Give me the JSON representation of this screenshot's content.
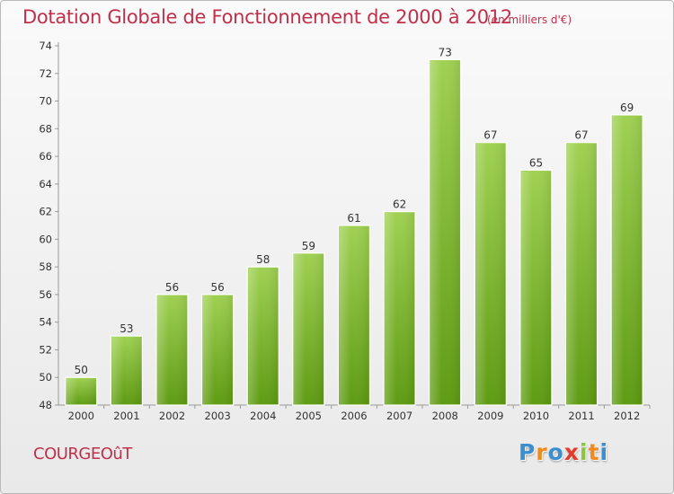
{
  "header": {
    "title": "Dotation Globale de Fonctionnement de 2000 à 2012",
    "unit": "(en milliers d'€)"
  },
  "footer": {
    "commune": "COURGEOûT",
    "logo_letters": [
      "P",
      "r",
      "o",
      "x",
      "i",
      "t",
      "i"
    ]
  },
  "colors": {
    "title": "#c0304a",
    "bar_top": "#9fd152",
    "bar_bottom": "#5e9b12",
    "logo": [
      "#3b8fd0",
      "#f08a1c",
      "#3b8fd0",
      "#e43a2a",
      "#8cc63f",
      "#f08a1c",
      "#3b8fd0"
    ]
  },
  "chart_data": {
    "type": "bar",
    "title": "Dotation Globale de Fonctionnement de 2000 à 2012",
    "subtitle": "(en milliers d'€)",
    "xlabel": "",
    "ylabel": "",
    "categories": [
      "2000",
      "2001",
      "2002",
      "2003",
      "2004",
      "2005",
      "2006",
      "2007",
      "2008",
      "2009",
      "2010",
      "2011",
      "2012"
    ],
    "values": [
      50,
      53,
      56,
      56,
      58,
      59,
      61,
      62,
      73,
      67,
      65,
      67,
      69
    ],
    "ylim": [
      48,
      74
    ],
    "yticks": [
      48,
      50,
      52,
      54,
      56,
      58,
      60,
      62,
      64,
      66,
      68,
      70,
      72,
      74
    ],
    "grid": false,
    "legend": "none"
  }
}
